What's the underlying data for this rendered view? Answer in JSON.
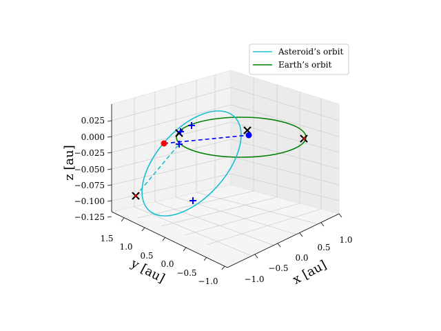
{
  "chart_data": {
    "type": "line3d",
    "axes": {
      "x": {
        "label": "$x$ [au]",
        "display": "x [au]",
        "ticks": [
          "−1.0",
          "−0.5",
          "0.0",
          "0.5",
          "1.0"
        ],
        "range": [
          -1.25,
          1.25
        ]
      },
      "y": {
        "label": "$y$ [au]",
        "display": "y [au]",
        "ticks": [
          "1.5",
          "1.0",
          "0.5",
          "0.0",
          "−0.5",
          "−1.0"
        ],
        "range": [
          -1.2,
          1.8
        ]
      },
      "z": {
        "label": "$z$ [au]",
        "display": "z [au]",
        "ticks": [
          "0.025",
          "0.000",
          "−0.025",
          "−0.050",
          "−0.075",
          "−0.100",
          "−0.125"
        ],
        "range": [
          -0.13,
          0.04
        ]
      }
    },
    "grid": true,
    "legend": {
      "location": "upper right",
      "entries": [
        {
          "name": "Asteroid’s orbit",
          "color": "#17becf"
        },
        {
          "name": "Earth’s orbit",
          "color": "#008000"
        }
      ]
    },
    "series": [
      {
        "name": "Asteroid’s orbit",
        "color": "#17becf",
        "style": "solid"
      },
      {
        "name": "Earth’s orbit",
        "color": "#008000",
        "style": "solid"
      }
    ],
    "connectors": [
      {
        "color": "#0000ff",
        "style": "dashed",
        "from": "earth-point",
        "to": "asteroid-point"
      },
      {
        "color": "#17becf",
        "style": "dashed",
        "from": "asteroid-near-marker",
        "to": "asteroid-far-marker"
      }
    ],
    "points": [
      {
        "name": "earth-point",
        "color": "#0000ff",
        "marker": "circle"
      },
      {
        "name": "asteroid-point",
        "color": "#ff0000",
        "marker": "circle"
      }
    ],
    "markers": {
      "x_color": "#000000",
      "plus_color": "#0000ff"
    }
  }
}
